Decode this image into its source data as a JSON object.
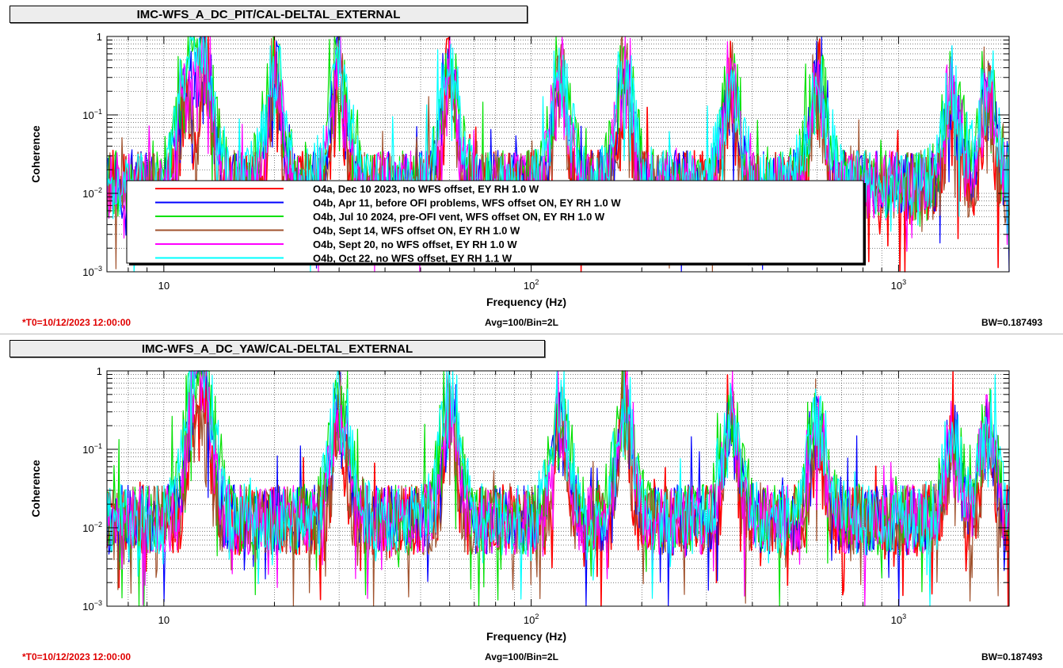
{
  "panels": [
    {
      "title": "IMC-WFS_A_DC_PIT/CAL-DELTAL_EXTERNAL",
      "footer": {
        "t0": "*T0=10/12/2023 12:00:00",
        "avg": "Avg=100/Bin=2L",
        "bw": "BW=0.187493"
      }
    },
    {
      "title": "IMC-WFS_A_DC_YAW/CAL-DELTAL_EXTERNAL",
      "footer": {
        "t0": "*T0=10/12/2023 12:00:00",
        "avg": "Avg=100/Bin=2L",
        "bw": "BW=0.187493"
      }
    }
  ],
  "chart_data": [
    {
      "type": "line",
      "title": "IMC-WFS_A_DC_PIT/CAL-DELTAL_EXTERNAL",
      "xlabel": "Frequency (Hz)",
      "ylabel": "Coherence",
      "xscale": "log",
      "yscale": "log",
      "xlim": [
        7.0,
        2000
      ],
      "ylim": [
        0.001,
        1
      ],
      "x_tick_labels": [
        "10",
        "10",
        "10"
      ],
      "x_tick_exponents": [
        "",
        "2",
        "3"
      ],
      "y_tick_labels": [
        "10",
        "10",
        "10",
        "1"
      ],
      "y_tick_exponents": [
        "−3",
        "−2",
        "−1",
        ""
      ],
      "grid": true,
      "legend_position": "center-left",
      "series": [
        {
          "name": "O4a, Dec 10 2023, no WFS offset, EY RH 1.0 W",
          "color": "#ff0000"
        },
        {
          "name": "O4b, Apr 11, before OFI problems, WFS offset ON, EY RH 1.0 W",
          "color": "#0000ff"
        },
        {
          "name": "O4b, Jul 10 2024, pre-OFI vent, WFS offset ON, EY RH 1.0 W",
          "color": "#00e000"
        },
        {
          "name": "O4b, Sept 14, WFS offset ON, EY RH 1.0 W",
          "color": "#a0522d"
        },
        {
          "name": "O4b, Sept 20, no WFS offset, EY RH 1.0 W",
          "color": "#ff00ff"
        },
        {
          "name": "O4b, Oct 22, no WFS offset, EY RH 1.1 W",
          "color": "#00ffff"
        }
      ],
      "peaks": [
        {
          "x": 11.5,
          "y": 0.5
        },
        {
          "x": 13.0,
          "y": 0.9
        },
        {
          "x": 20.0,
          "y": 0.8
        },
        {
          "x": 30.0,
          "y": 0.8
        },
        {
          "x": 60.0,
          "y": 0.9
        },
        {
          "x": 120.0,
          "y": 0.8
        },
        {
          "x": 180.0,
          "y": 0.9
        },
        {
          "x": 350.0,
          "y": 0.5
        },
        {
          "x": 600.0,
          "y": 0.7
        },
        {
          "x": 1400.0,
          "y": 0.35
        },
        {
          "x": 1750.0,
          "y": 0.4
        }
      ]
    },
    {
      "type": "line",
      "title": "IMC-WFS_A_DC_YAW/CAL-DELTAL_EXTERNAL",
      "xlabel": "Frequency (Hz)",
      "ylabel": "Coherence",
      "xscale": "log",
      "yscale": "log",
      "xlim": [
        7.0,
        2000
      ],
      "ylim": [
        0.001,
        1
      ],
      "x_tick_labels": [
        "10",
        "10",
        "10"
      ],
      "x_tick_exponents": [
        "",
        "2",
        "3"
      ],
      "y_tick_labels": [
        "10",
        "10",
        "10",
        "1"
      ],
      "y_tick_exponents": [
        "−3",
        "−2",
        "−1",
        ""
      ],
      "grid": true,
      "series": [
        {
          "color": "#ff0000"
        },
        {
          "color": "#0000ff"
        },
        {
          "color": "#00e000"
        },
        {
          "color": "#a0522d"
        },
        {
          "color": "#ff00ff"
        },
        {
          "color": "#00ffff"
        }
      ],
      "peaks": [
        {
          "x": 12.0,
          "y": 0.5
        },
        {
          "x": 13.0,
          "y": 0.9
        },
        {
          "x": 30.0,
          "y": 0.9
        },
        {
          "x": 60.0,
          "y": 1.0
        },
        {
          "x": 120.0,
          "y": 0.6
        },
        {
          "x": 180.0,
          "y": 0.9
        },
        {
          "x": 350.0,
          "y": 0.5
        },
        {
          "x": 600.0,
          "y": 0.4
        },
        {
          "x": 1400.0,
          "y": 0.2
        },
        {
          "x": 1750.0,
          "y": 0.3
        }
      ]
    }
  ]
}
